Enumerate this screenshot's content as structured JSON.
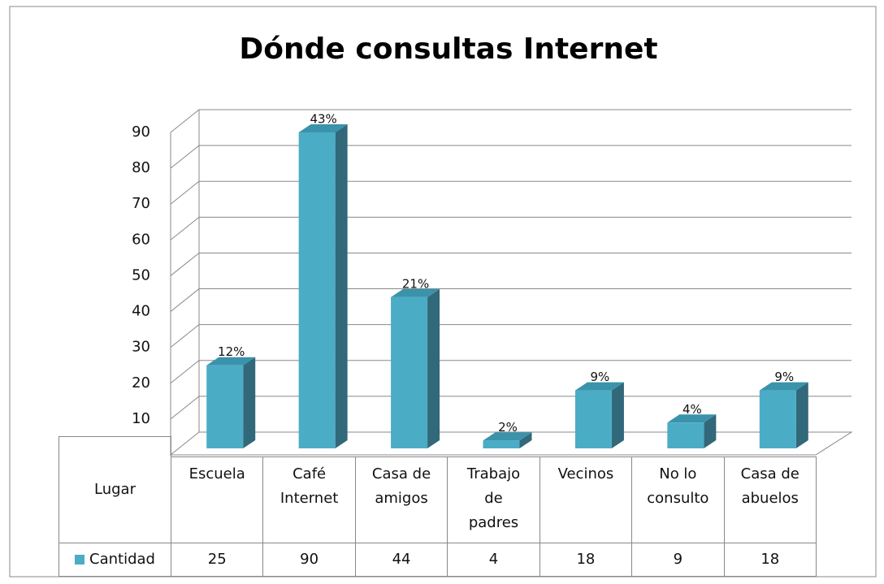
{
  "chart_data": {
    "type": "bar",
    "title": "Dónde consultas Internet",
    "table_header": "Lugar",
    "categories": [
      "Escuela",
      "Café Internet",
      "Casa de amigos",
      "Trabajo de padres",
      "Vecinos",
      "No lo consulto",
      "Casa de abuelos"
    ],
    "series": [
      {
        "name": "Cantidad",
        "color": "#4bacc6",
        "values": [
          25,
          90,
          44,
          4,
          18,
          9,
          18
        ]
      }
    ],
    "data_labels": [
      "12%",
      "43%",
      "21%",
      "2%",
      "9%",
      "4%",
      "9%"
    ],
    "ylim": [
      0,
      90
    ],
    "yticks": [
      10,
      20,
      30,
      40,
      50,
      60,
      70,
      80,
      90
    ],
    "grid": true
  }
}
